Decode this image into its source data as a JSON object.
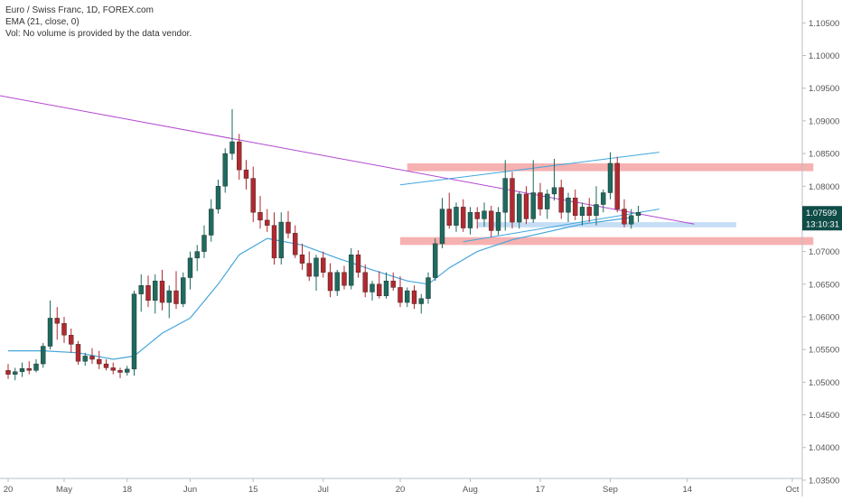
{
  "legend": {
    "symbol_line": "Euro / Swiss Franc, 1D, FOREX.com",
    "ema_line": "EMA (21, close, 0)",
    "vol_line": "Vol: No volume is provided by the data vendor."
  },
  "price_tag": {
    "last_price": "1.07599",
    "countdown": "13:10:31",
    "color": "#0f4c47"
  },
  "colors": {
    "up_candle": "#1e6b5f",
    "down_candle": "#b2292f",
    "ema": "#46a6dc",
    "resistance_trendline": "#b347d1",
    "channel_lines": "#3fa7de",
    "red_zone": "#f5a3a3",
    "blue_zone": "#bcd8f3",
    "axis_text": "#555555"
  },
  "chart_data": {
    "type": "candlestick",
    "timeframe": "1D",
    "symbol": "Euro / Swiss Franc",
    "y_axis": {
      "ticks": [
        "1.10500",
        "1.10000",
        "1.09500",
        "1.09000",
        "1.08500",
        "1.08000",
        "1.07500",
        "1.07000",
        "1.06500",
        "1.06000",
        "1.05500",
        "1.05000",
        "1.04500",
        "1.04000",
        "1.03500"
      ],
      "range": [
        1.0325,
        1.1085
      ],
      "position": "right"
    },
    "x_axis": {
      "ticks": [
        {
          "label": "20",
          "bar": 0
        },
        {
          "label": "May",
          "bar": 8
        },
        {
          "label": "18",
          "bar": 17
        },
        {
          "label": "Jun",
          "bar": 26
        },
        {
          "label": "15",
          "bar": 35
        },
        {
          "label": "Jul",
          "bar": 45
        },
        {
          "label": "20",
          "bar": 56
        },
        {
          "label": "Aug",
          "bar": 66
        },
        {
          "label": "17",
          "bar": 76
        },
        {
          "label": "Sep",
          "bar": 86
        },
        {
          "label": "14",
          "bar": 97
        },
        {
          "label": "Oct",
          "bar": 112
        }
      ]
    },
    "ohlc": [
      [
        1.0518,
        1.0528,
        1.0505,
        1.0512
      ],
      [
        1.0512,
        1.0522,
        1.0503,
        1.0516
      ],
      [
        1.0516,
        1.053,
        1.0508,
        1.0521
      ],
      [
        1.0521,
        1.0532,
        1.0512,
        1.0518
      ],
      [
        1.0518,
        1.0535,
        1.0515,
        1.0528
      ],
      [
        1.0528,
        1.056,
        1.0522,
        1.0555
      ],
      [
        1.0555,
        1.0625,
        1.055,
        1.0598
      ],
      [
        1.0598,
        1.0615,
        1.0565,
        1.059
      ],
      [
        1.059,
        1.06,
        1.056,
        1.0572
      ],
      [
        1.0572,
        1.0582,
        1.0545,
        1.0558
      ],
      [
        1.0558,
        1.0563,
        1.0527,
        1.0532
      ],
      [
        1.0532,
        1.0545,
        1.0525,
        1.054
      ],
      [
        1.054,
        1.0552,
        1.0528,
        1.0535
      ],
      [
        1.0535,
        1.0548,
        1.052,
        1.0528
      ],
      [
        1.0528,
        1.0535,
        1.0518,
        1.0522
      ],
      [
        1.0522,
        1.053,
        1.0512,
        1.0518
      ],
      [
        1.0518,
        1.0522,
        1.0506,
        1.0515
      ],
      [
        1.0515,
        1.0525,
        1.051,
        1.052
      ],
      [
        1.052,
        1.064,
        1.051,
        1.0635
      ],
      [
        1.0635,
        1.0665,
        1.0608,
        1.0648
      ],
      [
        1.0648,
        1.0663,
        1.0615,
        1.0625
      ],
      [
        1.0625,
        1.0665,
        1.0605,
        1.0655
      ],
      [
        1.0655,
        1.0672,
        1.061,
        1.0622
      ],
      [
        1.0622,
        1.0648,
        1.0598,
        1.064
      ],
      [
        1.064,
        1.067,
        1.0612,
        1.062
      ],
      [
        1.062,
        1.0668,
        1.0615,
        1.066
      ],
      [
        1.066,
        1.07,
        1.0642,
        1.069
      ],
      [
        1.069,
        1.071,
        1.067,
        1.07
      ],
      [
        1.07,
        1.074,
        1.069,
        1.0725
      ],
      [
        1.0725,
        1.078,
        1.0715,
        1.0765
      ],
      [
        1.0765,
        1.081,
        1.0758,
        1.08
      ],
      [
        1.08,
        1.0858,
        1.079,
        1.085
      ],
      [
        1.085,
        1.0918,
        1.084,
        1.0868
      ],
      [
        1.0868,
        1.088,
        1.081,
        1.0825
      ],
      [
        1.0825,
        1.084,
        1.0795,
        1.0812
      ],
      [
        1.0812,
        1.083,
        1.0745,
        1.076
      ],
      [
        1.076,
        1.0785,
        1.0735,
        1.0748
      ],
      [
        1.0748,
        1.0765,
        1.073,
        1.074
      ],
      [
        1.074,
        1.076,
        1.068,
        1.069
      ],
      [
        1.069,
        1.076,
        1.068,
        1.0745
      ],
      [
        1.0745,
        1.0762,
        1.072,
        1.0728
      ],
      [
        1.0728,
        1.074,
        1.069,
        1.0695
      ],
      [
        1.0695,
        1.0712,
        1.0672,
        1.0682
      ],
      [
        1.0682,
        1.07,
        1.0655,
        1.0662
      ],
      [
        1.0662,
        1.0695,
        1.064,
        1.069
      ],
      [
        1.069,
        1.07,
        1.066,
        1.0668
      ],
      [
        1.0668,
        1.0682,
        1.063,
        1.064
      ],
      [
        1.064,
        1.0672,
        1.0632,
        1.0668
      ],
      [
        1.0668,
        1.0678,
        1.0642,
        1.0648
      ],
      [
        1.0648,
        1.0705,
        1.0642,
        1.0695
      ],
      [
        1.0695,
        1.0702,
        1.066,
        1.0668
      ],
      [
        1.0668,
        1.068,
        1.063,
        1.0638
      ],
      [
        1.0638,
        1.0655,
        1.0625,
        1.065
      ],
      [
        1.065,
        1.067,
        1.0628,
        1.0632
      ],
      [
        1.0632,
        1.0668,
        1.0628,
        1.0655
      ],
      [
        1.0655,
        1.0668,
        1.064,
        1.0645
      ],
      [
        1.0645,
        1.0662,
        1.0615,
        1.0622
      ],
      [
        1.0622,
        1.0645,
        1.0615,
        1.064
      ],
      [
        1.064,
        1.0648,
        1.0612,
        1.062
      ],
      [
        1.062,
        1.0635,
        1.0605,
        1.0628
      ],
      [
        1.0628,
        1.0668,
        1.062,
        1.066
      ],
      [
        1.066,
        1.072,
        1.0655,
        1.0712
      ],
      [
        1.0712,
        1.0782,
        1.0705,
        1.0765
      ],
      [
        1.0765,
        1.079,
        1.0735,
        1.074
      ],
      [
        1.074,
        1.0775,
        1.073,
        1.0768
      ],
      [
        1.0768,
        1.078,
        1.073,
        1.0736
      ],
      [
        1.0736,
        1.0768,
        1.0726,
        1.076
      ],
      [
        1.076,
        1.0768,
        1.0735,
        1.075
      ],
      [
        1.075,
        1.0775,
        1.0738,
        1.0762
      ],
      [
        1.0762,
        1.077,
        1.0722,
        1.0732
      ],
      [
        1.0732,
        1.0768,
        1.0725,
        1.076
      ],
      [
        1.076,
        1.084,
        1.0732,
        1.0812
      ],
      [
        1.0812,
        1.0822,
        1.0735,
        1.0745
      ],
      [
        1.0745,
        1.0792,
        1.0735,
        1.0788
      ],
      [
        1.0788,
        1.08,
        1.0742,
        1.075
      ],
      [
        1.075,
        1.084,
        1.0744,
        1.079
      ],
      [
        1.079,
        1.0805,
        1.0755,
        1.0765
      ],
      [
        1.0765,
        1.0795,
        1.075,
        1.0788
      ],
      [
        1.0788,
        1.0842,
        1.0778,
        1.0798
      ],
      [
        1.0798,
        1.081,
        1.075,
        1.076
      ],
      [
        1.076,
        1.079,
        1.0745,
        1.0782
      ],
      [
        1.0782,
        1.0795,
        1.0748,
        1.0755
      ],
      [
        1.0755,
        1.0775,
        1.074,
        1.0768
      ],
      [
        1.0768,
        1.0782,
        1.0745,
        1.0755
      ],
      [
        1.0755,
        1.08,
        1.074,
        1.0772
      ],
      [
        1.0772,
        1.0795,
        1.076,
        1.079
      ],
      [
        1.079,
        1.0852,
        1.078,
        1.0835
      ],
      [
        1.0835,
        1.0845,
        1.076,
        1.0765
      ],
      [
        1.0765,
        1.078,
        1.0737,
        1.0742
      ],
      [
        1.0742,
        1.0765,
        1.0735,
        1.0755
      ],
      [
        1.0755,
        1.077,
        1.0745,
        1.076
      ]
    ],
    "ema_21": [
      [
        0,
        1.0548
      ],
      [
        5,
        1.0548
      ],
      [
        10,
        1.0545
      ],
      [
        15,
        1.0535
      ],
      [
        18,
        1.054
      ],
      [
        22,
        1.0575
      ],
      [
        26,
        1.0598
      ],
      [
        30,
        1.065
      ],
      [
        33,
        1.0695
      ],
      [
        37,
        1.072
      ],
      [
        42,
        1.071
      ],
      [
        47,
        1.069
      ],
      [
        52,
        1.0672
      ],
      [
        57,
        1.0655
      ],
      [
        60,
        1.065
      ],
      [
        63,
        1.0675
      ],
      [
        67,
        1.07
      ],
      [
        72,
        1.0718
      ],
      [
        77,
        1.073
      ],
      [
        82,
        1.0742
      ],
      [
        89,
        1.0752
      ]
    ],
    "drawings": {
      "resistance_trendline": {
        "from": [
          -12,
          1.096
        ],
        "to": [
          98,
          1.0742
        ]
      },
      "channel_upper": {
        "from": [
          56,
          1.0802
        ],
        "to": [
          93,
          1.0852
        ]
      },
      "channel_lower": {
        "from": [
          65,
          1.0715
        ],
        "to": [
          93,
          1.0765
        ]
      },
      "red_zone_upper": {
        "x": [
          57,
          115
        ],
        "y": [
          1.0823,
          1.0835
        ]
      },
      "red_zone_lower": {
        "x": [
          56,
          115
        ],
        "y": [
          1.071,
          1.0722
        ]
      },
      "blue_zone": {
        "x": [
          67,
          104
        ],
        "y": [
          1.0737,
          1.0745
        ]
      }
    }
  }
}
